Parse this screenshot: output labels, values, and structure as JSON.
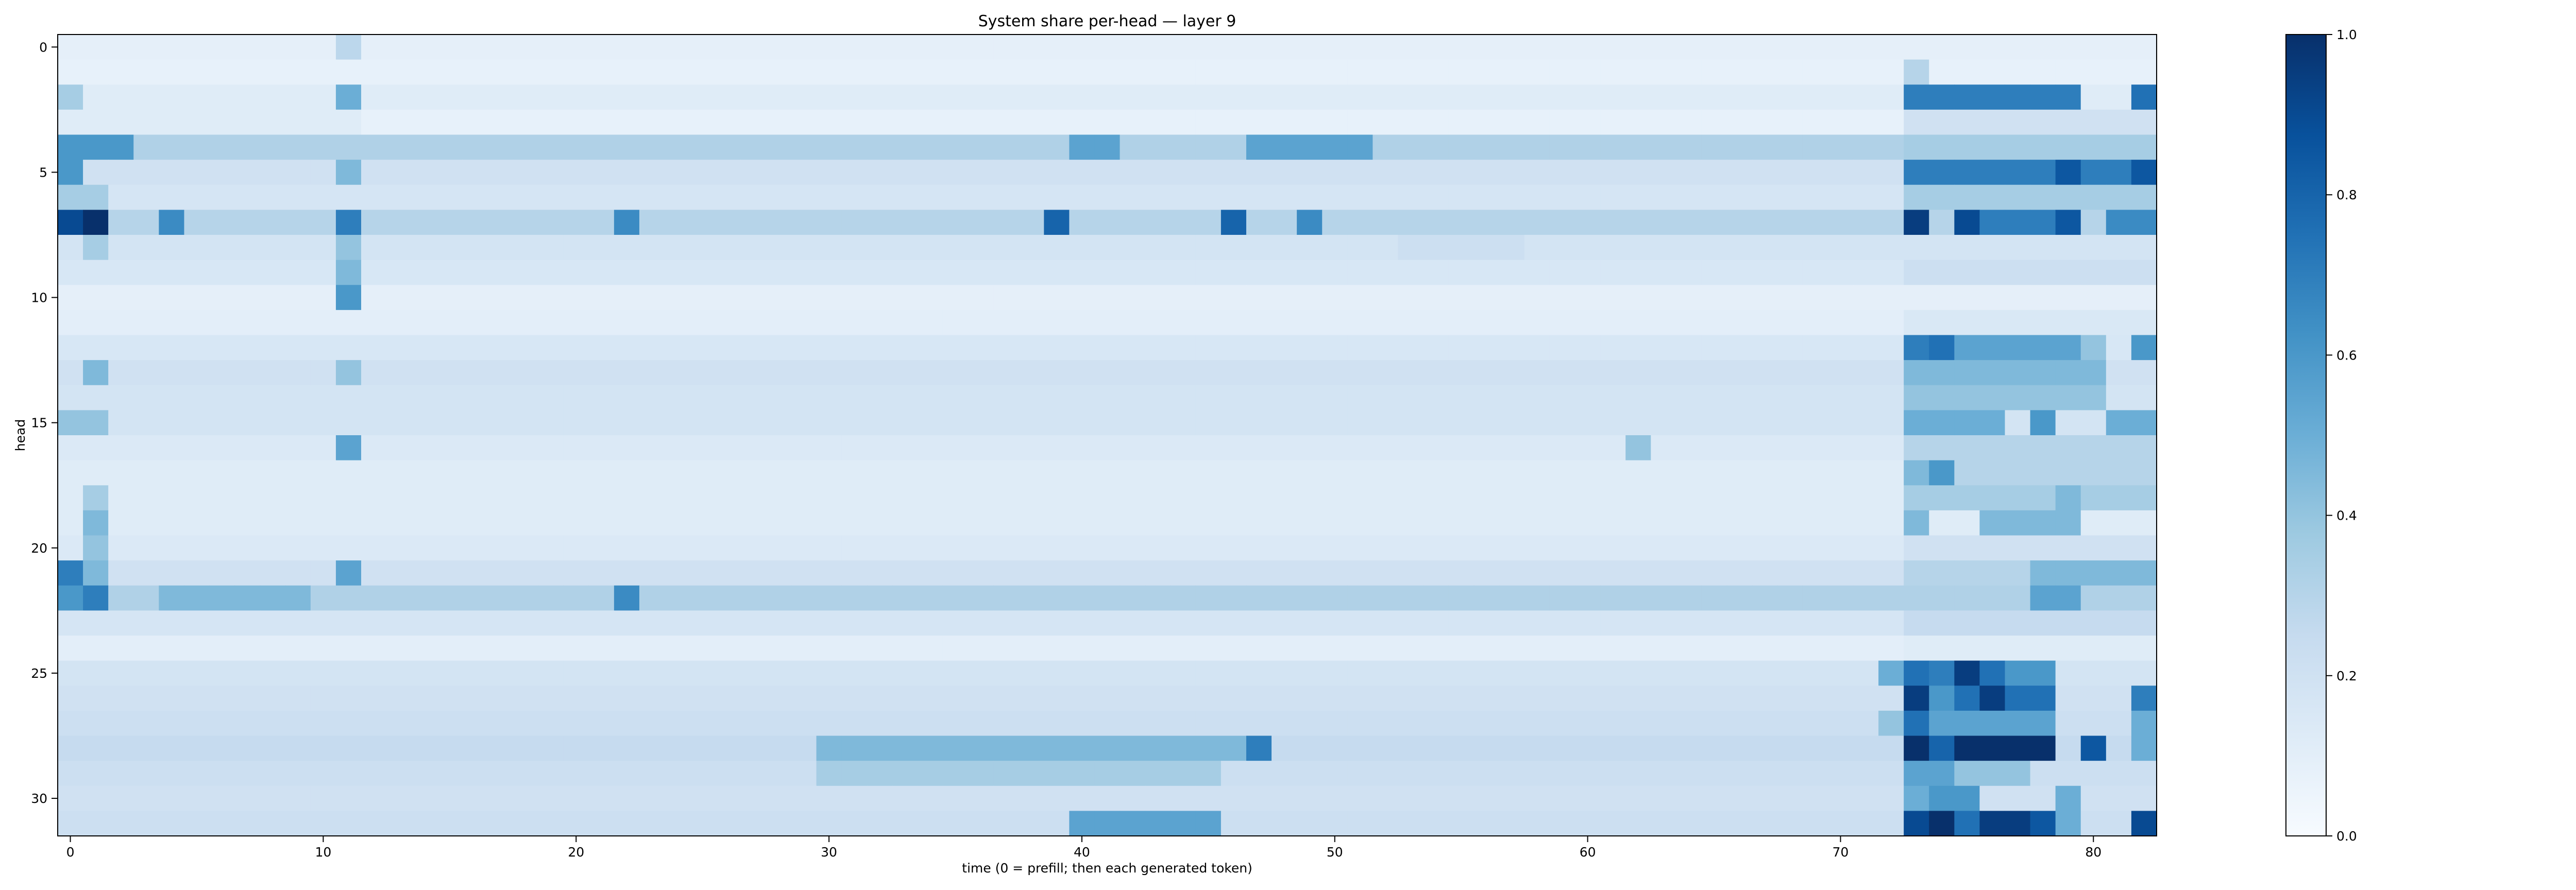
{
  "chart_data": [
    {
      "type": "heatmap",
      "title": "System share per-head — layer 9",
      "xlabel": "time (0 = prefill; then each generated token)",
      "ylabel": "head",
      "x_range": [
        0,
        82
      ],
      "y_range": [
        0,
        31
      ],
      "x_ticks": [
        0,
        10,
        20,
        30,
        40,
        50,
        60,
        70,
        80
      ],
      "y_ticks": [
        0,
        5,
        10,
        15,
        20,
        25,
        30
      ],
      "colormap": "Blues",
      "vmin": 0.0,
      "vmax": 1.0,
      "colorbar_ticks": [
        "0.0",
        "0.2",
        "0.4",
        "0.6",
        "0.8",
        "1.0"
      ],
      "grid": false,
      "rows": [
        {
          "head": 0,
          "base": 0.09,
          "segments": [
            [
              11,
              11,
              0.28
            ]
          ]
        },
        {
          "head": 1,
          "base": 0.08,
          "segments": [
            [
              73,
              73,
              0.3
            ]
          ]
        },
        {
          "head": 2,
          "base": 0.12,
          "segments": [
            [
              0,
              0,
              0.35
            ],
            [
              11,
              11,
              0.5
            ],
            [
              73,
              79,
              0.7
            ],
            [
              82,
              82,
              0.75
            ]
          ]
        },
        {
          "head": 3,
          "base": 0.08,
          "segments": [
            [
              0,
              11,
              0.12
            ],
            [
              73,
              82,
              0.2
            ]
          ]
        },
        {
          "head": 4,
          "base": 0.32,
          "segments": [
            [
              0,
              2,
              0.6
            ],
            [
              40,
              41,
              0.55
            ],
            [
              47,
              51,
              0.55
            ],
            [
              73,
              82,
              0.35
            ]
          ]
        },
        {
          "head": 5,
          "base": 0.2,
          "segments": [
            [
              0,
              0,
              0.6
            ],
            [
              11,
              11,
              0.45
            ],
            [
              73,
              82,
              0.7
            ],
            [
              79,
              79,
              0.85
            ],
            [
              82,
              82,
              0.85
            ]
          ]
        },
        {
          "head": 6,
          "base": 0.17,
          "segments": [
            [
              0,
              1,
              0.35
            ],
            [
              73,
              82,
              0.35
            ]
          ]
        },
        {
          "head": 7,
          "base": 0.3,
          "segments": [
            [
              0,
              0,
              0.9
            ],
            [
              1,
              1,
              1.0
            ],
            [
              4,
              4,
              0.65
            ],
            [
              11,
              11,
              0.7
            ],
            [
              22,
              22,
              0.65
            ],
            [
              39,
              39,
              0.8
            ],
            [
              46,
              46,
              0.8
            ],
            [
              49,
              49,
              0.65
            ],
            [
              73,
              73,
              0.95
            ],
            [
              75,
              75,
              0.9
            ],
            [
              76,
              78,
              0.7
            ],
            [
              79,
              79,
              0.85
            ],
            [
              81,
              82,
              0.65
            ]
          ]
        },
        {
          "head": 8,
          "base": 0.18,
          "segments": [
            [
              1,
              1,
              0.35
            ],
            [
              11,
              11,
              0.4
            ],
            [
              53,
              57,
              0.22
            ]
          ]
        },
        {
          "head": 9,
          "base": 0.16,
          "segments": [
            [
              11,
              11,
              0.45
            ],
            [
              73,
              82,
              0.22
            ]
          ]
        },
        {
          "head": 10,
          "base": 0.09,
          "segments": [
            [
              11,
              11,
              0.6
            ]
          ]
        },
        {
          "head": 11,
          "base": 0.1,
          "segments": [
            [
              73,
              82,
              0.15
            ]
          ]
        },
        {
          "head": 12,
          "base": 0.16,
          "segments": [
            [
              73,
              73,
              0.7
            ],
            [
              74,
              74,
              0.75
            ],
            [
              75,
              79,
              0.55
            ],
            [
              80,
              80,
              0.4
            ],
            [
              82,
              82,
              0.6
            ]
          ]
        },
        {
          "head": 13,
          "base": 0.2,
          "segments": [
            [
              1,
              1,
              0.45
            ],
            [
              11,
              11,
              0.4
            ],
            [
              73,
              80,
              0.45
            ]
          ]
        },
        {
          "head": 14,
          "base": 0.18,
          "segments": [
            [
              73,
              80,
              0.4
            ]
          ]
        },
        {
          "head": 15,
          "base": 0.18,
          "segments": [
            [
              0,
              1,
              0.4
            ],
            [
              73,
              76,
              0.5
            ],
            [
              78,
              78,
              0.6
            ],
            [
              81,
              82,
              0.5
            ]
          ]
        },
        {
          "head": 16,
          "base": 0.14,
          "segments": [
            [
              11,
              11,
              0.55
            ],
            [
              62,
              62,
              0.4
            ],
            [
              73,
              82,
              0.3
            ]
          ]
        },
        {
          "head": 17,
          "base": 0.12,
          "segments": [
            [
              73,
              73,
              0.45
            ],
            [
              74,
              74,
              0.6
            ],
            [
              75,
              82,
              0.3
            ]
          ]
        },
        {
          "head": 18,
          "base": 0.12,
          "segments": [
            [
              1,
              1,
              0.35
            ],
            [
              73,
              82,
              0.35
            ],
            [
              79,
              79,
              0.45
            ]
          ]
        },
        {
          "head": 19,
          "base": 0.12,
          "segments": [
            [
              1,
              1,
              0.45
            ],
            [
              73,
              73,
              0.45
            ],
            [
              76,
              79,
              0.45
            ]
          ]
        },
        {
          "head": 20,
          "base": 0.14,
          "segments": [
            [
              1,
              1,
              0.4
            ],
            [
              73,
              82,
              0.2
            ]
          ]
        },
        {
          "head": 21,
          "base": 0.2,
          "segments": [
            [
              0,
              0,
              0.7
            ],
            [
              1,
              1,
              0.45
            ],
            [
              11,
              11,
              0.55
            ],
            [
              73,
              82,
              0.3
            ],
            [
              78,
              82,
              0.45
            ]
          ]
        },
        {
          "head": 22,
          "base": 0.32,
          "segments": [
            [
              0,
              0,
              0.6
            ],
            [
              1,
              1,
              0.7
            ],
            [
              4,
              9,
              0.45
            ],
            [
              22,
              22,
              0.65
            ],
            [
              78,
              79,
              0.55
            ]
          ]
        },
        {
          "head": 23,
          "base": 0.17,
          "segments": [
            [
              73,
              82,
              0.25
            ]
          ]
        },
        {
          "head": 24,
          "base": 0.1,
          "segments": [
            [
              73,
              82,
              0.12
            ]
          ]
        },
        {
          "head": 25,
          "base": 0.18,
          "segments": [
            [
              72,
              72,
              0.5
            ],
            [
              73,
              73,
              0.75
            ],
            [
              74,
              74,
              0.7
            ],
            [
              75,
              75,
              0.95
            ],
            [
              76,
              76,
              0.75
            ],
            [
              77,
              77,
              0.6
            ],
            [
              78,
              78,
              0.6
            ]
          ]
        },
        {
          "head": 26,
          "base": 0.2,
          "segments": [
            [
              73,
              73,
              0.95
            ],
            [
              74,
              74,
              0.6
            ],
            [
              75,
              75,
              0.75
            ],
            [
              76,
              76,
              0.95
            ],
            [
              77,
              78,
              0.75
            ],
            [
              82,
              82,
              0.7
            ]
          ]
        },
        {
          "head": 27,
          "base": 0.22,
          "segments": [
            [
              72,
              72,
              0.4
            ],
            [
              73,
              73,
              0.75
            ],
            [
              74,
              78,
              0.55
            ],
            [
              82,
              82,
              0.5
            ]
          ]
        },
        {
          "head": 28,
          "base": 0.25,
          "segments": [
            [
              30,
              46,
              0.45
            ],
            [
              47,
              47,
              0.7
            ],
            [
              73,
              73,
              1.0
            ],
            [
              74,
              74,
              0.8
            ],
            [
              75,
              78,
              1.0
            ],
            [
              80,
              80,
              0.85
            ],
            [
              82,
              82,
              0.5
            ]
          ]
        },
        {
          "head": 29,
          "base": 0.22,
          "segments": [
            [
              30,
              45,
              0.35
            ],
            [
              73,
              74,
              0.55
            ],
            [
              75,
              77,
              0.4
            ]
          ]
        },
        {
          "head": 30,
          "base": 0.2,
          "segments": [
            [
              73,
              73,
              0.5
            ],
            [
              74,
              75,
              0.6
            ],
            [
              79,
              79,
              0.5
            ]
          ]
        },
        {
          "head": 31,
          "base": 0.22,
          "segments": [
            [
              40,
              45,
              0.55
            ],
            [
              73,
              73,
              0.9
            ],
            [
              74,
              74,
              1.0
            ],
            [
              75,
              75,
              0.75
            ],
            [
              76,
              77,
              0.95
            ],
            [
              78,
              78,
              0.85
            ],
            [
              79,
              79,
              0.5
            ],
            [
              82,
              82,
              0.9
            ]
          ]
        }
      ]
    }
  ]
}
